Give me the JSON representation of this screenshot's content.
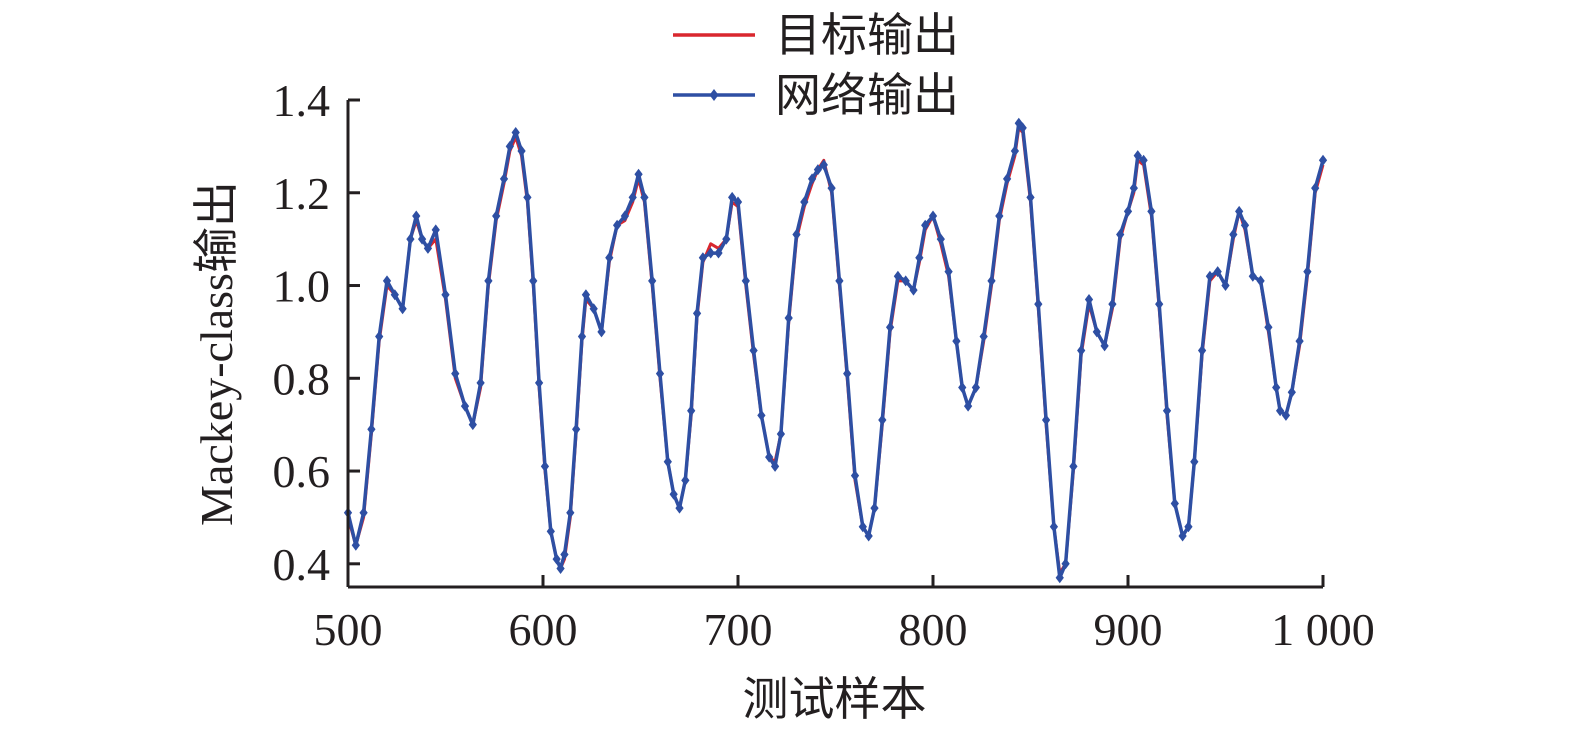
{
  "chart_data": {
    "type": "line",
    "xlabel": "测试样本",
    "ylabel": "Mackey-class输出",
    "xlim": [
      500,
      1000
    ],
    "ylim": [
      0.35,
      1.4
    ],
    "xticks": [
      500,
      600,
      700,
      800,
      900,
      1000
    ],
    "xtick_labels": [
      "500",
      "600",
      "700",
      "800",
      "900",
      "1 000"
    ],
    "yticks": [
      0.4,
      0.6,
      0.8,
      1.0,
      1.2,
      1.4
    ],
    "ytick_labels": [
      "0.4",
      "0.6",
      "0.8",
      "1.0",
      "1.2",
      "1.4"
    ],
    "grid": false,
    "legend_position": "top",
    "x": [
      500,
      504,
      508,
      512,
      516,
      520,
      524,
      528,
      532,
      535,
      538,
      541,
      545,
      550,
      555,
      560,
      564,
      568,
      572,
      576,
      580,
      583,
      586,
      589,
      592,
      595,
      598,
      601,
      604,
      607,
      609,
      611,
      614,
      617,
      620,
      622,
      626,
      630,
      634,
      638,
      642,
      646,
      649,
      652,
      656,
      660,
      664,
      667,
      670,
      673,
      676,
      679,
      682,
      686,
      690,
      694,
      697,
      700,
      704,
      708,
      712,
      716,
      719,
      722,
      726,
      730,
      734,
      738,
      741,
      744,
      748,
      752,
      756,
      760,
      764,
      767,
      770,
      774,
      778,
      782,
      786,
      790,
      793,
      796,
      800,
      804,
      808,
      812,
      815,
      818,
      822,
      826,
      830,
      834,
      838,
      842,
      844,
      846,
      850,
      854,
      858,
      862,
      865,
      868,
      872,
      876,
      880,
      884,
      888,
      892,
      896,
      900,
      903,
      905,
      908,
      912,
      916,
      920,
      924,
      928,
      931,
      934,
      938,
      942,
      946,
      950,
      954,
      957,
      960,
      964,
      968,
      972,
      976,
      978,
      981,
      984,
      988,
      992,
      996,
      1000
    ],
    "series": [
      {
        "name": "目标输出",
        "values": [
          0.5,
          0.44,
          0.5,
          0.68,
          0.88,
          1.0,
          0.98,
          0.95,
          1.1,
          1.14,
          1.1,
          1.08,
          1.1,
          0.97,
          0.8,
          0.74,
          0.7,
          0.78,
          1.0,
          1.14,
          1.22,
          1.29,
          1.32,
          1.28,
          1.18,
          1.0,
          0.78,
          0.6,
          0.47,
          0.41,
          0.39,
          0.41,
          0.5,
          0.68,
          0.88,
          0.97,
          0.95,
          0.9,
          1.05,
          1.13,
          1.14,
          1.18,
          1.23,
          1.18,
          1.0,
          0.8,
          0.62,
          0.55,
          0.52,
          0.58,
          0.72,
          0.93,
          1.05,
          1.09,
          1.08,
          1.1,
          1.18,
          1.17,
          1.0,
          0.85,
          0.72,
          0.63,
          0.62,
          0.68,
          0.92,
          1.1,
          1.17,
          1.22,
          1.25,
          1.27,
          1.2,
          1.0,
          0.8,
          0.58,
          0.48,
          0.46,
          0.52,
          0.7,
          0.9,
          1.01,
          1.01,
          0.99,
          1.05,
          1.12,
          1.15,
          1.09,
          1.02,
          0.88,
          0.78,
          0.74,
          0.78,
          0.88,
          1.0,
          1.14,
          1.22,
          1.28,
          1.34,
          1.33,
          1.18,
          0.95,
          0.7,
          0.48,
          0.38,
          0.4,
          0.6,
          0.85,
          0.96,
          0.9,
          0.87,
          0.95,
          1.1,
          1.16,
          1.2,
          1.27,
          1.26,
          1.15,
          0.95,
          0.72,
          0.53,
          0.46,
          0.48,
          0.62,
          0.85,
          1.01,
          1.03,
          1.0,
          1.1,
          1.16,
          1.12,
          1.02,
          1.01,
          0.9,
          0.78,
          0.73,
          0.72,
          0.77,
          0.87,
          1.02,
          1.2,
          1.26
        ]
      },
      {
        "name": "网络输出",
        "values": [
          0.51,
          0.44,
          0.51,
          0.69,
          0.89,
          1.01,
          0.98,
          0.95,
          1.1,
          1.15,
          1.1,
          1.08,
          1.12,
          0.98,
          0.81,
          0.74,
          0.7,
          0.79,
          1.01,
          1.15,
          1.23,
          1.3,
          1.33,
          1.29,
          1.19,
          1.01,
          0.79,
          0.61,
          0.47,
          0.41,
          0.39,
          0.42,
          0.51,
          0.69,
          0.89,
          0.98,
          0.95,
          0.9,
          1.06,
          1.13,
          1.15,
          1.19,
          1.24,
          1.19,
          1.01,
          0.81,
          0.62,
          0.55,
          0.52,
          0.58,
          0.73,
          0.94,
          1.06,
          1.07,
          1.07,
          1.1,
          1.19,
          1.18,
          1.01,
          0.86,
          0.72,
          0.63,
          0.61,
          0.68,
          0.93,
          1.11,
          1.18,
          1.23,
          1.25,
          1.26,
          1.21,
          1.01,
          0.81,
          0.59,
          0.48,
          0.46,
          0.52,
          0.71,
          0.91,
          1.02,
          1.01,
          0.99,
          1.06,
          1.13,
          1.15,
          1.1,
          1.03,
          0.88,
          0.78,
          0.74,
          0.78,
          0.89,
          1.01,
          1.15,
          1.23,
          1.29,
          1.35,
          1.34,
          1.19,
          0.96,
          0.71,
          0.48,
          0.37,
          0.4,
          0.61,
          0.86,
          0.97,
          0.9,
          0.87,
          0.96,
          1.11,
          1.16,
          1.21,
          1.28,
          1.27,
          1.16,
          0.96,
          0.73,
          0.53,
          0.46,
          0.48,
          0.62,
          0.86,
          1.02,
          1.03,
          1.0,
          1.11,
          1.16,
          1.13,
          1.02,
          1.01,
          0.91,
          0.78,
          0.73,
          0.72,
          0.77,
          0.88,
          1.03,
          1.21,
          1.27
        ]
      }
    ],
    "colors": {
      "target": "#d9272e",
      "network": "#2e4fa3",
      "axis": "#231f20"
    }
  }
}
